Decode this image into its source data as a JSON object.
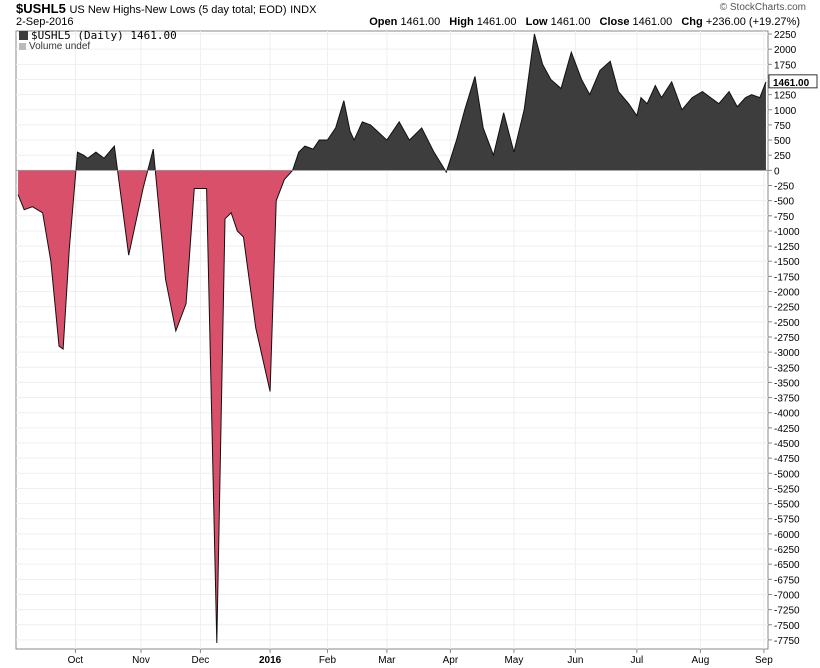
{
  "header": {
    "symbol": "$USHL5",
    "description": "US New Highs-New Lows (5 day total; EOD)",
    "exchange": "INDX",
    "date": "2-Sep-2016",
    "open_label": "Open",
    "open": "1461.00",
    "high_label": "High",
    "high": "1461.00",
    "low_label": "Low",
    "low": "1461.00",
    "close_label": "Close",
    "close": "1461.00",
    "chg_label": "Chg",
    "chg": "+236.00 (+19.27%)",
    "copyright": "© StockCharts.com"
  },
  "legend": {
    "series_label": "$USHL5 (Daily) 1461.00",
    "volume_label": "Volume undef"
  },
  "colors": {
    "positive": "#3d3d3d",
    "negative": "#d9506a",
    "line": "#111111"
  },
  "chart_data": {
    "type": "area",
    "title": "$USHL5 US New Highs-New Lows (5 day total; EOD)",
    "last_value_label": "1461.00",
    "ylim": [
      -7900,
      2300
    ],
    "yticks": [
      2250,
      2000,
      1750,
      1500,
      1250,
      1000,
      750,
      500,
      250,
      0,
      -250,
      -500,
      -750,
      -1000,
      -1250,
      -1500,
      -1750,
      -2000,
      -2250,
      -2500,
      -2750,
      -3000,
      -3250,
      -3500,
      -3750,
      -4000,
      -4250,
      -4500,
      -4750,
      -5000,
      -5250,
      -5500,
      -5750,
      -6000,
      -6250,
      -6500,
      -6750,
      -7000,
      -7250,
      -7500,
      -7750
    ],
    "xticks": [
      {
        "label": "Oct",
        "date": "2015-10-01"
      },
      {
        "label": "Nov",
        "date": "2015-11-02"
      },
      {
        "label": "Dec",
        "date": "2015-12-01"
      },
      {
        "label": "2016",
        "date": "2016-01-04",
        "bold": true
      },
      {
        "label": "Feb",
        "date": "2016-02-01"
      },
      {
        "label": "Mar",
        "date": "2016-03-01"
      },
      {
        "label": "Apr",
        "date": "2016-04-01"
      },
      {
        "label": "May",
        "date": "2016-05-02"
      },
      {
        "label": "Jun",
        "date": "2016-06-01"
      },
      {
        "label": "Jul",
        "date": "2016-07-01"
      },
      {
        "label": "Aug",
        "date": "2016-08-01"
      },
      {
        "label": "Sep",
        "date": "2016-09-01"
      }
    ],
    "x": [
      "2015-09-03",
      "2015-09-06",
      "2015-09-10",
      "2015-09-15",
      "2015-09-19",
      "2015-09-23",
      "2015-09-25",
      "2015-09-28",
      "2015-10-02",
      "2015-10-05",
      "2015-10-07",
      "2015-10-11",
      "2015-10-15",
      "2015-10-20",
      "2015-10-27",
      "2015-11-03",
      "2015-11-08",
      "2015-11-14",
      "2015-11-19",
      "2015-11-24",
      "2015-11-28",
      "2015-12-04",
      "2015-12-09",
      "2015-12-13",
      "2015-12-16",
      "2015-12-19",
      "2015-12-22",
      "2015-12-28",
      "2016-01-04",
      "2016-01-07",
      "2016-01-11",
      "2016-01-15",
      "2016-01-18",
      "2016-01-21",
      "2016-01-25",
      "2016-01-28",
      "2016-02-01",
      "2016-02-05",
      "2016-02-09",
      "2016-02-12",
      "2016-02-14",
      "2016-02-18",
      "2016-02-22",
      "2016-03-01",
      "2016-03-07",
      "2016-03-12",
      "2016-03-18",
      "2016-03-24",
      "2016-03-30",
      "2016-04-04",
      "2016-04-08",
      "2016-04-13",
      "2016-04-17",
      "2016-04-22",
      "2016-04-27",
      "2016-05-02",
      "2016-05-07",
      "2016-05-12",
      "2016-05-16",
      "2016-05-20",
      "2016-05-25",
      "2016-05-30",
      "2016-06-04",
      "2016-06-08",
      "2016-06-13",
      "2016-06-18",
      "2016-06-22",
      "2016-06-27",
      "2016-07-01",
      "2016-07-03",
      "2016-07-06",
      "2016-07-10",
      "2016-07-13",
      "2016-07-18",
      "2016-07-23",
      "2016-07-28",
      "2016-08-02",
      "2016-08-06",
      "2016-08-10",
      "2016-08-15",
      "2016-08-19",
      "2016-08-23",
      "2016-08-26",
      "2016-08-30",
      "2016-09-02"
    ],
    "series": [
      {
        "values": [
          -400,
          -650,
          -600,
          -700,
          -1500,
          -2900,
          -2950,
          -1300,
          300,
          250,
          200,
          300,
          200,
          400,
          -1400,
          -300,
          350,
          -1800,
          -2650,
          -2200,
          -300,
          -300,
          -7800,
          -800,
          -700,
          -1000,
          -1100,
          -2600,
          -3650,
          -500,
          -150,
          0,
          300,
          400,
          350,
          500,
          500,
          700,
          1150,
          650,
          500,
          800,
          750,
          500,
          800,
          500,
          700,
          300,
          -30,
          500,
          1000,
          1550,
          700,
          250,
          950,
          300,
          1000,
          2250,
          1750,
          1500,
          1350,
          1950,
          1500,
          1250,
          1650,
          1800,
          1300,
          1100,
          900,
          1200,
          1100,
          1400,
          1200,
          1461,
          1000,
          1200,
          1300,
          1200,
          1100,
          1300,
          1050,
          1200,
          1250,
          1200,
          1461
        ],
        "order_note": "values correspond to x dates"
      }
    ]
  }
}
